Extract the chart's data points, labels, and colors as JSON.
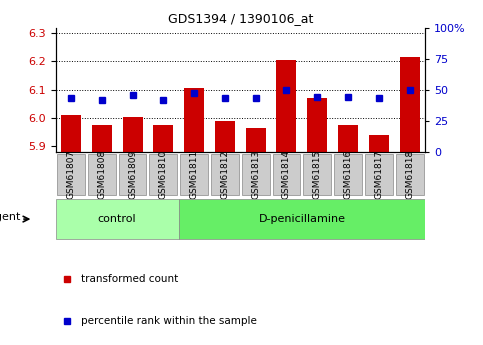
{
  "title": "GDS1394 / 1390106_at",
  "samples": [
    "GSM61807",
    "GSM61808",
    "GSM61809",
    "GSM61810",
    "GSM61811",
    "GSM61812",
    "GSM61813",
    "GSM61814",
    "GSM61815",
    "GSM61816",
    "GSM61817",
    "GSM61818"
  ],
  "red_values": [
    6.01,
    5.975,
    6.005,
    5.975,
    6.105,
    5.99,
    5.965,
    6.205,
    6.07,
    5.975,
    5.94,
    6.215
  ],
  "blue_values_pct": [
    43,
    42,
    46,
    42,
    47,
    43,
    43,
    50,
    44,
    44,
    43,
    50
  ],
  "ylim_left": [
    5.88,
    6.32
  ],
  "ylim_right": [
    0,
    100
  ],
  "yticks_left": [
    5.9,
    6.0,
    6.1,
    6.2,
    6.3
  ],
  "yticks_right": [
    0,
    25,
    50,
    75,
    100
  ],
  "ytick_labels_right": [
    "0",
    "25",
    "50",
    "75",
    "100%"
  ],
  "control_indices": [
    0,
    1,
    2,
    3
  ],
  "treatment_indices": [
    4,
    5,
    6,
    7,
    8,
    9,
    10,
    11
  ],
  "control_label": "control",
  "treatment_label": "D-penicillamine",
  "agent_label": "agent",
  "legend_red": "transformed count",
  "legend_blue": "percentile rank within the sample",
  "bar_color": "#CC0000",
  "dot_color": "#0000CC",
  "control_bg": "#AAFFAA",
  "treatment_bg": "#66EE66",
  "grid_color": "#000000",
  "tick_label_color_left": "#CC0000",
  "tick_label_color_right": "#0000CC",
  "bar_bottom": 5.88,
  "bar_width": 0.65,
  "box_bg": "#CCCCCC"
}
